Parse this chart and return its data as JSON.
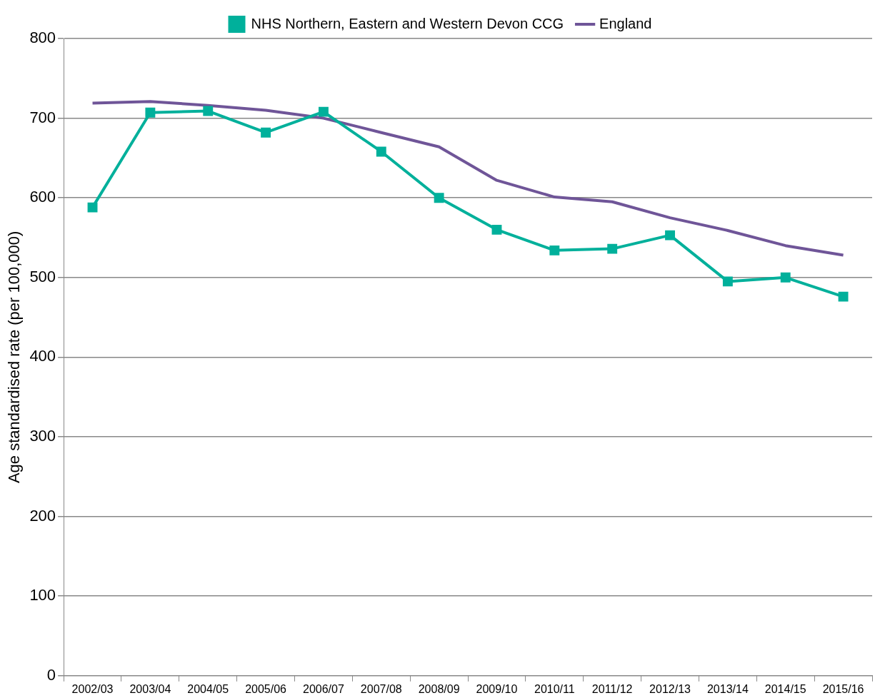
{
  "chart_data": {
    "type": "line",
    "ylabel": "Age standardised rate (per 100,000)",
    "categories": [
      "2002/03",
      "2003/04",
      "2004/05",
      "2005/06",
      "2006/07",
      "2007/08",
      "2008/09",
      "2009/10",
      "2010/11",
      "2011/12",
      "2012/13",
      "2013/14",
      "2014/15",
      "2015/16"
    ],
    "series": [
      {
        "name": "NHS Northern, Eastern and Western Devon CCG",
        "color": "#00b09b",
        "marker": "square",
        "values": [
          588,
          707,
          709,
          682,
          708,
          658,
          600,
          560,
          534,
          536,
          553,
          495,
          500,
          476
        ]
      },
      {
        "name": "England",
        "color": "#6f5598",
        "marker": "none",
        "values": [
          719,
          721,
          716,
          710,
          700,
          682,
          664,
          622,
          601,
          595,
          575,
          559,
          540,
          528
        ]
      }
    ],
    "ylim": [
      0,
      800
    ],
    "yticks": [
      0,
      100,
      200,
      300,
      400,
      500,
      600,
      700,
      800
    ],
    "grid": "y",
    "legend": "top",
    "line_style": "solid"
  }
}
